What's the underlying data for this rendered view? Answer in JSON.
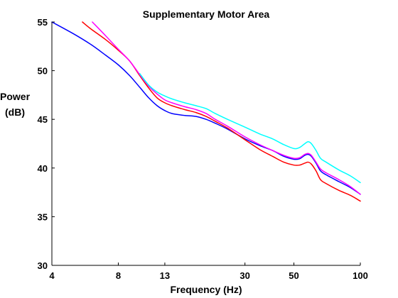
{
  "chart_data": {
    "type": "line",
    "title": "Supplementary Motor Area",
    "xlabel": "Frequency (Hz)",
    "ylabel_line1": "Power",
    "ylabel_line2": "(dB)",
    "x_scale": "log",
    "xlim": [
      4,
      100
    ],
    "ylim": [
      30,
      55
    ],
    "xticks": [
      4,
      8,
      13,
      30,
      50,
      100
    ],
    "xtick_labels": [
      "4",
      "8",
      "13",
      "30",
      "50",
      "100"
    ],
    "yticks": [
      30,
      35,
      40,
      45,
      50,
      55
    ],
    "ytick_labels": [
      "30",
      "35",
      "40",
      "45",
      "50",
      "55"
    ],
    "grid": false,
    "legend": "none",
    "series": [
      {
        "color": "#0000ff",
        "points": [
          [
            4,
            55
          ],
          [
            5,
            53.8
          ],
          [
            6,
            52.7
          ],
          [
            7,
            51.6
          ],
          [
            8,
            50.6
          ],
          [
            9,
            49.5
          ],
          [
            10,
            48.3
          ],
          [
            11,
            47.2
          ],
          [
            12,
            46.4
          ],
          [
            13,
            45.9
          ],
          [
            14,
            45.6
          ],
          [
            16,
            45.4
          ],
          [
            18,
            45.3
          ],
          [
            20,
            45.0
          ],
          [
            22,
            44.6
          ],
          [
            25,
            44.0
          ],
          [
            30,
            43.0
          ],
          [
            35,
            42.3
          ],
          [
            40,
            41.8
          ],
          [
            45,
            41.2
          ],
          [
            50,
            40.9
          ],
          [
            53,
            40.95
          ],
          [
            56,
            41.3
          ],
          [
            58,
            41.4
          ],
          [
            60,
            41.2
          ],
          [
            63,
            40.5
          ],
          [
            66,
            39.7
          ],
          [
            70,
            39.3
          ],
          [
            80,
            38.6
          ],
          [
            90,
            38.0
          ],
          [
            100,
            37.3
          ]
        ]
      },
      {
        "color": "#ff0000",
        "points": [
          [
            5.5,
            55
          ],
          [
            6,
            54.3
          ],
          [
            7,
            53.2
          ],
          [
            8,
            52.1
          ],
          [
            9,
            51.0
          ],
          [
            10,
            49.5
          ],
          [
            11,
            48.2
          ],
          [
            12,
            47.2
          ],
          [
            13,
            46.7
          ],
          [
            14,
            46.4
          ],
          [
            16,
            46.0
          ],
          [
            18,
            45.7
          ],
          [
            20,
            45.3
          ],
          [
            22,
            44.8
          ],
          [
            25,
            44.1
          ],
          [
            30,
            42.9
          ],
          [
            35,
            41.9
          ],
          [
            40,
            41.2
          ],
          [
            45,
            40.6
          ],
          [
            50,
            40.3
          ],
          [
            53,
            40.3
          ],
          [
            56,
            40.5
          ],
          [
            58,
            40.6
          ],
          [
            60,
            40.4
          ],
          [
            63,
            39.7
          ],
          [
            66,
            38.8
          ],
          [
            70,
            38.4
          ],
          [
            80,
            37.7
          ],
          [
            90,
            37.2
          ],
          [
            100,
            36.6
          ]
        ]
      },
      {
        "color": "#ff00ff",
        "points": [
          [
            6.1,
            55
          ],
          [
            7,
            53.6
          ],
          [
            8,
            52.2
          ],
          [
            9,
            51.0
          ],
          [
            10,
            49.6
          ],
          [
            11,
            48.4
          ],
          [
            12,
            47.6
          ],
          [
            13,
            47.0
          ],
          [
            14,
            46.7
          ],
          [
            16,
            46.3
          ],
          [
            18,
            46.0
          ],
          [
            20,
            45.6
          ],
          [
            22,
            45.0
          ],
          [
            25,
            44.3
          ],
          [
            30,
            43.2
          ],
          [
            35,
            42.4
          ],
          [
            40,
            41.8
          ],
          [
            45,
            41.3
          ],
          [
            50,
            41.0
          ],
          [
            53,
            41.05
          ],
          [
            56,
            41.4
          ],
          [
            58,
            41.5
          ],
          [
            60,
            41.3
          ],
          [
            63,
            40.6
          ],
          [
            66,
            39.9
          ],
          [
            70,
            39.5
          ],
          [
            80,
            38.8
          ],
          [
            90,
            38.1
          ],
          [
            100,
            37.3
          ]
        ]
      },
      {
        "color": "#00ffff",
        "points": [
          [
            10,
            49.7
          ],
          [
            11,
            48.5
          ],
          [
            12,
            47.8
          ],
          [
            13,
            47.4
          ],
          [
            14,
            47.1
          ],
          [
            16,
            46.7
          ],
          [
            18,
            46.4
          ],
          [
            20,
            46.1
          ],
          [
            22,
            45.6
          ],
          [
            25,
            45.0
          ],
          [
            30,
            44.2
          ],
          [
            35,
            43.5
          ],
          [
            40,
            43.0
          ],
          [
            45,
            42.4
          ],
          [
            50,
            42.0
          ],
          [
            53,
            42.1
          ],
          [
            56,
            42.5
          ],
          [
            58,
            42.7
          ],
          [
            60,
            42.5
          ],
          [
            63,
            41.8
          ],
          [
            66,
            41.0
          ],
          [
            70,
            40.6
          ],
          [
            80,
            39.8
          ],
          [
            90,
            39.2
          ],
          [
            100,
            38.5
          ]
        ]
      }
    ]
  }
}
